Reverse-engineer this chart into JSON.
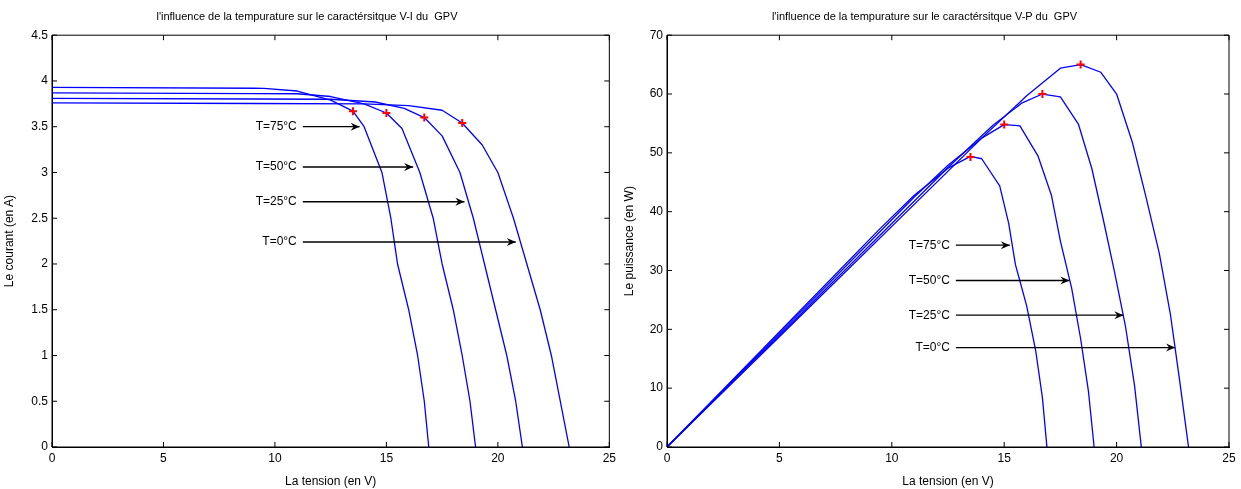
{
  "chart_data": [
    {
      "type": "line",
      "title": "l'influence de la tempurature sur le caractérsitque V-I du  GPV",
      "xlabel": "La tension (en V)",
      "ylabel": "Le courant (en A)",
      "xlim": [
        0,
        25
      ],
      "ylim": [
        0,
        4.5
      ],
      "xticks": [
        0,
        5,
        10,
        15,
        20,
        25
      ],
      "yticks": [
        0,
        0.5,
        1,
        1.5,
        2,
        2.5,
        3,
        3.5,
        4,
        4.5
      ],
      "series": [
        {
          "type": "line",
          "color": "#0000ff",
          "marker": "none",
          "x": [
            0,
            9.5,
            11,
            12.5,
            13.5,
            14,
            14.8,
            15.2,
            15.5,
            16,
            16.4,
            16.7,
            16.9
          ],
          "values": [
            3.93,
            3.92,
            3.89,
            3.79,
            3.67,
            3.5,
            3.0,
            2.5,
            2.0,
            1.5,
            1.0,
            0.5,
            0
          ]
        },
        {
          "type": "line",
          "color": "#0000ff",
          "marker": "none",
          "x": [
            0,
            11,
            12.5,
            14,
            15,
            15.7,
            16.5,
            17.1,
            17.5,
            18,
            18.4,
            18.75,
            19.0
          ],
          "values": [
            3.87,
            3.86,
            3.83,
            3.75,
            3.65,
            3.48,
            3.0,
            2.5,
            2.0,
            1.5,
            1.0,
            0.5,
            0
          ]
        },
        {
          "type": "line",
          "color": "#0000ff",
          "marker": "none",
          "x": [
            0,
            12.5,
            14.5,
            15.8,
            16.7,
            17.5,
            18.3,
            18.9,
            19.4,
            19.9,
            20.4,
            20.8,
            21.1
          ],
          "values": [
            3.81,
            3.8,
            3.77,
            3.7,
            3.6,
            3.4,
            3.0,
            2.5,
            2.0,
            1.5,
            1.0,
            0.5,
            0
          ]
        },
        {
          "type": "line",
          "color": "#0000ff",
          "marker": "none",
          "x": [
            0,
            14,
            16,
            17.5,
            18.4,
            19.3,
            20,
            20.7,
            21.3,
            21.9,
            22.4,
            22.8,
            23.2
          ],
          "values": [
            3.76,
            3.75,
            3.73,
            3.68,
            3.54,
            3.3,
            3.0,
            2.5,
            2.0,
            1.5,
            1.0,
            0.5,
            0
          ]
        },
        {
          "type": "scatter",
          "color": "#ff0000",
          "marker": "cross",
          "x": [
            13.5,
            15.0,
            16.7,
            18.4
          ],
          "values": [
            3.67,
            3.65,
            3.6,
            3.54
          ]
        }
      ],
      "annotations": [
        {
          "text": "T=75°C",
          "x": 13.8,
          "y": 3.5
        },
        {
          "text": "T=50°C",
          "x": 16.2,
          "y": 3.06
        },
        {
          "text": "T=25°C",
          "x": 18.5,
          "y": 2.68
        },
        {
          "text": "T=0°C",
          "x": 20.8,
          "y": 2.24
        }
      ]
    },
    {
      "type": "line",
      "title": "l'influence de la tempurature sur le caractérsitque V-P du  GPV",
      "xlabel": "La tension (en V)",
      "ylabel": "Le puissance (en W)",
      "xlim": [
        0,
        25
      ],
      "ylim": [
        0,
        70
      ],
      "xticks": [
        0,
        5,
        10,
        15,
        20,
        25
      ],
      "yticks": [
        0,
        10,
        20,
        30,
        40,
        50,
        60,
        70
      ],
      "series": [
        {
          "type": "line",
          "color": "#0000ff",
          "marker": "none",
          "x": [
            0,
            9.5,
            11,
            12.5,
            13.5,
            14,
            14.8,
            15.2,
            15.5,
            16,
            16.4,
            16.7,
            16.9
          ],
          "values": [
            0,
            37.2,
            42.8,
            47.4,
            49.4,
            49.0,
            44.4,
            38.0,
            31.0,
            24.0,
            16.4,
            8.4,
            0
          ]
        },
        {
          "type": "line",
          "color": "#0000ff",
          "marker": "none",
          "x": [
            0,
            11,
            12.5,
            14,
            15,
            15.7,
            16.5,
            17.1,
            17.5,
            18,
            18.4,
            18.75,
            19.0
          ],
          "values": [
            0,
            42.5,
            47.9,
            52.5,
            54.8,
            54.6,
            49.5,
            42.8,
            35.0,
            27.0,
            18.4,
            9.4,
            0
          ]
        },
        {
          "type": "line",
          "color": "#0000ff",
          "marker": "none",
          "x": [
            0,
            12.5,
            14.5,
            15.8,
            16.7,
            17.5,
            18.3,
            18.9,
            19.4,
            19.9,
            20.4,
            20.8,
            21.1
          ],
          "values": [
            0,
            47.5,
            54.7,
            58.5,
            60.0,
            59.5,
            54.9,
            47.3,
            38.8,
            29.9,
            20.4,
            10.4,
            0
          ]
        },
        {
          "type": "line",
          "color": "#0000ff",
          "marker": "none",
          "x": [
            0,
            14,
            16,
            17.5,
            18.4,
            19.3,
            20,
            20.7,
            21.3,
            21.9,
            22.4,
            22.8,
            23.2
          ],
          "values": [
            0,
            52.5,
            59.7,
            64.4,
            65.0,
            63.7,
            60.0,
            51.8,
            42.6,
            32.9,
            22.4,
            11.4,
            0
          ]
        },
        {
          "type": "scatter",
          "color": "#ff0000",
          "marker": "cross",
          "x": [
            13.5,
            15.0,
            16.7,
            18.4
          ],
          "values": [
            49.3,
            54.8,
            60.0,
            65.0
          ]
        }
      ],
      "annotations": [
        {
          "text": "T=75°C",
          "x": 15.25,
          "y": 34.3
        },
        {
          "text": "T=50°C",
          "x": 17.9,
          "y": 28.3
        },
        {
          "text": "T=25°C",
          "x": 20.3,
          "y": 22.4
        },
        {
          "text": "T=0°C",
          "x": 22.6,
          "y": 16.9
        }
      ]
    }
  ]
}
